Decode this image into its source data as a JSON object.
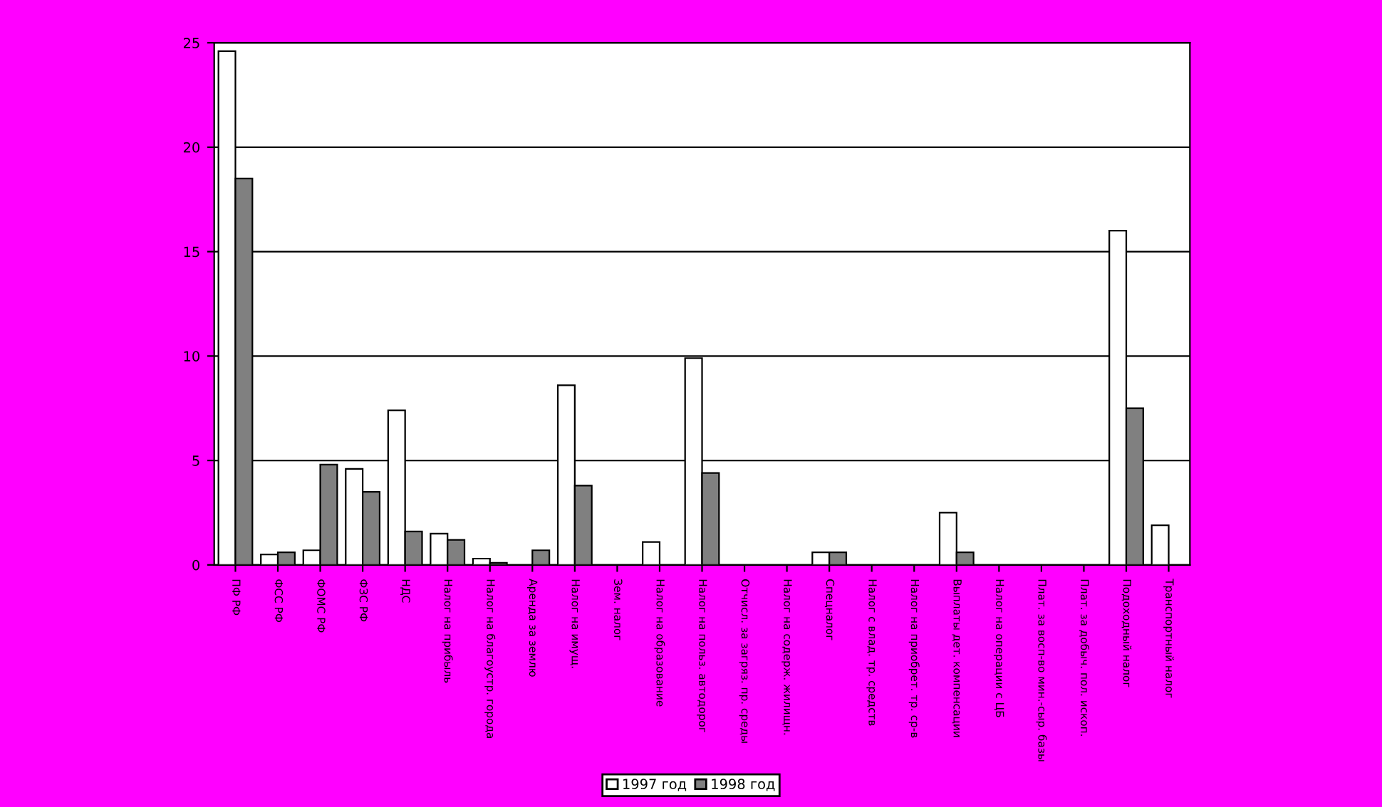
{
  "chart_data": {
    "type": "bar",
    "categories": [
      "ПФ РФ",
      "ФСС РФ",
      "ФОМС РФ",
      "ФЗС РФ",
      "НДС",
      "Налог на прибыль",
      "Налог на благоустр. города",
      "Аренда за землю",
      "Налог на имущ.",
      "Зем. налог",
      "Налог на образование",
      "Налог на польз. автодорог",
      "Отчисл. за загряз. пр. среды",
      "Налог на содерж. жилищн.",
      "Спецналог",
      "Налог с влад. тр. средств",
      "Налог на приобрет. тр. ср-в",
      "Выплаты дет. компенсации",
      "Налог на операции с ЦБ",
      "Плат. за восп-во мин.-сыр. базы",
      "Плат. за добыч. пол. ископ.",
      "Подоходный налог",
      "Транспортный налог"
    ],
    "series": [
      {
        "name": "1997 год",
        "color": "#ffffff",
        "values": [
          24.6,
          0.5,
          0.7,
          4.6,
          7.4,
          1.5,
          0.3,
          0,
          8.6,
          0,
          1.1,
          9.9,
          0,
          0,
          0.6,
          0,
          0,
          2.5,
          0,
          0,
          0,
          16.0,
          1.9
        ]
      },
      {
        "name": "1998 год",
        "color": "#808080",
        "values": [
          18.5,
          0.6,
          4.8,
          3.5,
          1.6,
          1.2,
          0.1,
          0.7,
          3.8,
          0,
          0,
          4.4,
          0,
          0,
          0.6,
          0,
          0,
          0.6,
          0,
          0,
          0,
          7.5,
          0
        ]
      }
    ],
    "ylim": [
      0,
      25
    ],
    "yticks": [
      0,
      5,
      10,
      15,
      20,
      25
    ],
    "grid": "y",
    "legend": "bottom"
  }
}
